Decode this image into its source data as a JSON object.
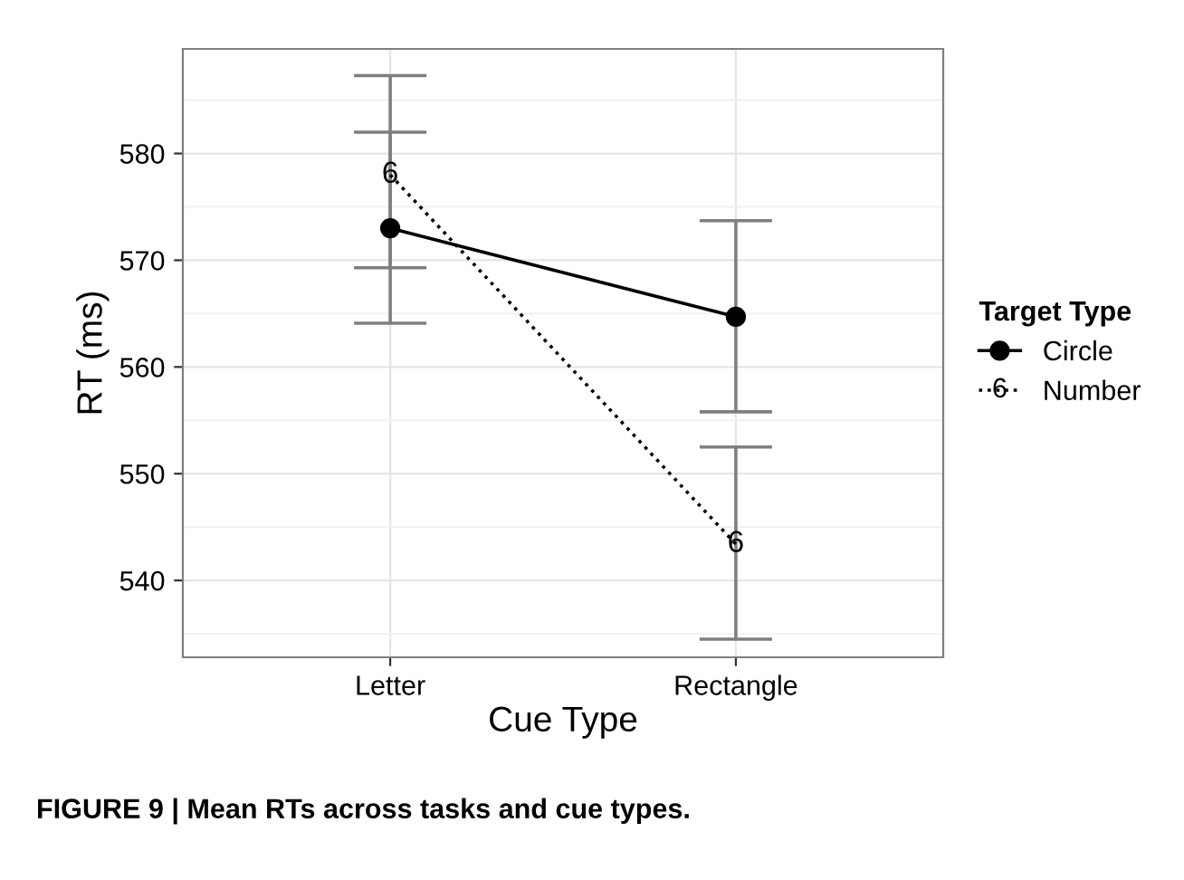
{
  "chart_data": {
    "type": "line",
    "xlabel": "Cue Type",
    "ylabel": "RT (ms)",
    "legend_title": "Target Type",
    "categories": [
      "Letter",
      "Rectangle"
    ],
    "series": [
      {
        "name": "Circle",
        "color": "#000000",
        "values": [
          573.0,
          564.7
        ],
        "errors": [
          [
            564.1,
            582.0
          ],
          [
            555.8,
            573.7
          ]
        ],
        "marker": "circle",
        "line_style": "solid"
      },
      {
        "name": "Number",
        "color": "#000000",
        "values": [
          578.0,
          543.4
        ],
        "errors": [
          [
            569.3,
            587.3
          ],
          [
            534.5,
            552.5
          ]
        ],
        "marker": "none",
        "line_style": "dotted"
      }
    ],
    "ylim": [
      532.8,
      589.8
    ],
    "yticks": [
      540,
      550,
      560,
      570,
      580
    ],
    "grid": true,
    "legend": "right",
    "annotations": [
      {
        "text": "6",
        "x": "Letter",
        "y": 578.0
      },
      {
        "text": "6",
        "x": "Rectangle",
        "y": 543.4
      },
      "FIGURE 9 | Mean RTs across tasks and cue types."
    ]
  }
}
